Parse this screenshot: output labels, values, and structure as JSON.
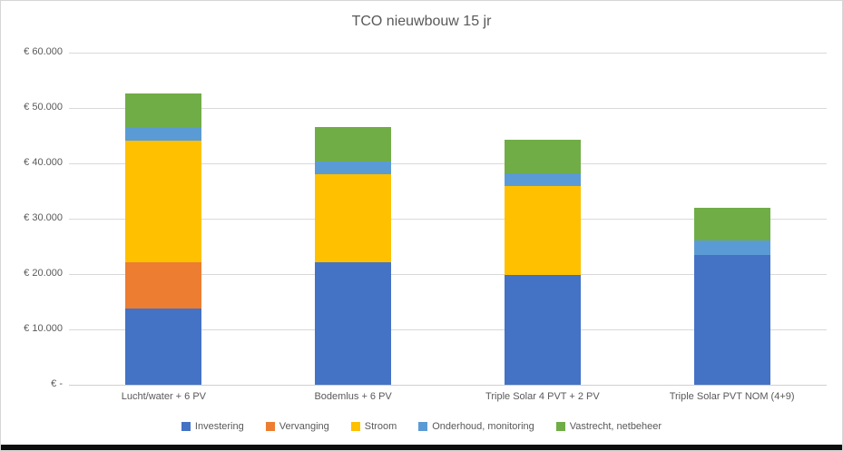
{
  "chart_data": {
    "type": "bar",
    "stacked": true,
    "title": "TCO nieuwbouw 15 jr",
    "categories": [
      "Lucht/water + 6 PV",
      "Bodemlus + 6 PV",
      "Triple Solar 4 PVT + 2 PV",
      "Triple Solar PVT NOM (4+9)"
    ],
    "series": [
      {
        "name": "Investering",
        "color": "#4472C4",
        "values": [
          13800,
          22200,
          19800,
          23400
        ]
      },
      {
        "name": "Vervanging",
        "color": "#ED7D31",
        "values": [
          8400,
          0,
          0,
          0
        ]
      },
      {
        "name": "Stroom",
        "color": "#FFC000",
        "values": [
          21900,
          15900,
          16100,
          0
        ]
      },
      {
        "name": "Onderhoud, monitoring",
        "color": "#5B9BD5",
        "values": [
          2500,
          2300,
          2300,
          2700
        ]
      },
      {
        "name": "Vastrecht, netbeheer",
        "color": "#70AD47",
        "values": [
          6100,
          6100,
          6100,
          5900
        ]
      }
    ],
    "y_axis": {
      "min": 0,
      "max": 60000,
      "step": 10000,
      "tick_labels": [
        "€ -",
        "€ 10.000",
        "€ 20.000",
        "€ 30.000",
        "€ 40.000",
        "€ 50.000",
        "€ 60.000"
      ]
    },
    "grid": true,
    "legend_position": "bottom",
    "text_color": "#595959",
    "gridline_color": "#D9D9D9"
  }
}
